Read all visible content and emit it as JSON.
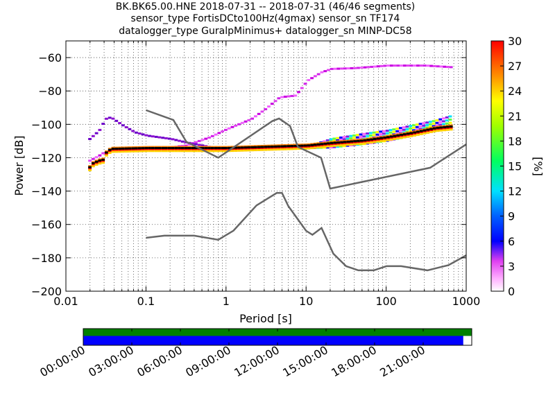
{
  "title_lines": [
    "BK.BK65.00.HNE   2018-07-31 -- 2018-07-31  (46/46 segments)",
    "sensor_type FortisDCto100Hz(4gmax) sensor_sn TF174",
    "datalogger_type GuralpMinimus+ datalogger_sn MINP-DC58"
  ],
  "chart_data": {
    "type": "heatmap",
    "xlabel": "Period [s]",
    "ylabel": "Power [dB]",
    "x_scale": "log",
    "xlim": [
      0.01,
      1000
    ],
    "ylim": [
      -200,
      -50
    ],
    "x_ticks": [
      0.01,
      0.1,
      1,
      10,
      100,
      1000
    ],
    "x_tick_labels": [
      "0.01",
      "0.1",
      "1",
      "10",
      "100",
      "1000"
    ],
    "y_ticks": [
      -200,
      -180,
      -160,
      -140,
      -120,
      -100,
      -80,
      -60
    ],
    "y_tick_labels": [
      "−200",
      "−180",
      "−160",
      "−140",
      "−120",
      "−100",
      "−80",
      "−60"
    ],
    "grid": true,
    "colorbar": {
      "label": "[%]",
      "range": [
        0,
        30
      ],
      "ticks": [
        0,
        3,
        6,
        9,
        12,
        15,
        18,
        21,
        24,
        27,
        30
      ],
      "tick_labels": [
        "0",
        "3",
        "6",
        "9",
        "12",
        "15",
        "18",
        "21",
        "24",
        "27",
        "30"
      ]
    },
    "noise_models": [
      {
        "points": [
          [
            0.1,
            -168
          ],
          [
            0.17,
            -166.7
          ],
          [
            0.4,
            -166.7
          ],
          [
            0.8,
            -169.2
          ],
          [
            1.24,
            -163.7
          ],
          [
            2.4,
            -148.6
          ],
          [
            4.3,
            -141.1
          ],
          [
            5.0,
            -141.1
          ],
          [
            6.0,
            -149.0
          ],
          [
            10.0,
            -163.8
          ],
          [
            12.0,
            -166.2
          ],
          [
            15.6,
            -162.1
          ],
          [
            21.9,
            -177.5
          ],
          [
            31.6,
            -185.0
          ],
          [
            45.0,
            -187.5
          ],
          [
            70.0,
            -187.5
          ],
          [
            101.0,
            -185.0
          ],
          [
            154.0,
            -185.0
          ],
          [
            328.0,
            -187.5
          ],
          [
            600.0,
            -184.4
          ],
          [
            1000,
            -178.5
          ]
        ]
      },
      {
        "points": [
          [
            0.1,
            -91.5
          ],
          [
            0.22,
            -97.4
          ],
          [
            0.32,
            -110.5
          ],
          [
            0.8,
            -120.0
          ],
          [
            3.8,
            -98.0
          ],
          [
            4.6,
            -96.5
          ],
          [
            6.3,
            -101.0
          ],
          [
            7.9,
            -113.5
          ],
          [
            15.4,
            -120.0
          ],
          [
            20.0,
            -138.5
          ],
          [
            354.8,
            -126.0
          ],
          [
            1000,
            -112.0
          ]
        ]
      }
    ],
    "density": {
      "base_band": [
        [
          0.019,
          -126.5
        ],
        [
          0.021,
          -124
        ],
        [
          0.025,
          -122.5
        ],
        [
          0.028,
          -122
        ],
        [
          0.03,
          -118
        ],
        [
          0.035,
          -115.5
        ],
        [
          0.1,
          -115
        ],
        [
          1,
          -115
        ],
        [
          10,
          -113.5
        ],
        [
          20,
          -112
        ],
        [
          50,
          -110.5
        ],
        [
          100,
          -108.5
        ],
        [
          200,
          -106
        ],
        [
          400,
          -103
        ],
        [
          650,
          -102
        ]
      ],
      "fan_top": [
        [
          10,
          -113.5
        ],
        [
          20,
          -109
        ],
        [
          50,
          -106
        ],
        [
          100,
          -104
        ],
        [
          200,
          -101
        ],
        [
          400,
          -98
        ],
        [
          650,
          -95
        ]
      ],
      "fan_bottom": [
        [
          10,
          -114.5
        ],
        [
          20,
          -114
        ],
        [
          50,
          -112
        ],
        [
          100,
          -110
        ],
        [
          200,
          -107
        ],
        [
          400,
          -104
        ],
        [
          650,
          -103
        ]
      ],
      "upper_branch": [
        [
          0.019,
          -122
        ],
        [
          0.025,
          -119
        ],
        [
          0.03,
          -116.5
        ],
        [
          0.06,
          -116
        ],
        [
          0.1,
          -115.5
        ],
        [
          0.3,
          -113
        ],
        [
          0.6,
          -108
        ],
        [
          1,
          -103
        ],
        [
          2,
          -97
        ],
        [
          3,
          -91
        ],
        [
          4.5,
          -84
        ],
        [
          7,
          -83
        ],
        [
          8,
          -80
        ],
        [
          10,
          -74
        ],
        [
          15,
          -69
        ],
        [
          20,
          -67
        ],
        [
          40,
          -66.5
        ],
        [
          100,
          -65
        ],
        [
          300,
          -65
        ],
        [
          650,
          -66
        ]
      ],
      "spur_branch": [
        [
          0.019,
          -109
        ],
        [
          0.025,
          -104
        ],
        [
          0.03,
          -97
        ],
        [
          0.035,
          -96
        ],
        [
          0.05,
          -101
        ],
        [
          0.07,
          -105
        ],
        [
          0.1,
          -107
        ],
        [
          0.2,
          -109
        ],
        [
          0.3,
          -111
        ],
        [
          0.5,
          -113
        ],
        [
          0.7,
          -114.5
        ]
      ]
    }
  },
  "timeline": {
    "tick_labels": [
      "00:00:00",
      "03:00:00",
      "06:00:00",
      "09:00:00",
      "12:00:00",
      "15:00:00",
      "18:00:00",
      "21:00:00"
    ],
    "data_coverage_fraction": 1.0,
    "processed_coverage_fraction": 0.979,
    "data_color": "#008000",
    "processed_color": "#0000ff"
  },
  "colors": {
    "noise_model": "#666666",
    "frame": "#000000"
  }
}
